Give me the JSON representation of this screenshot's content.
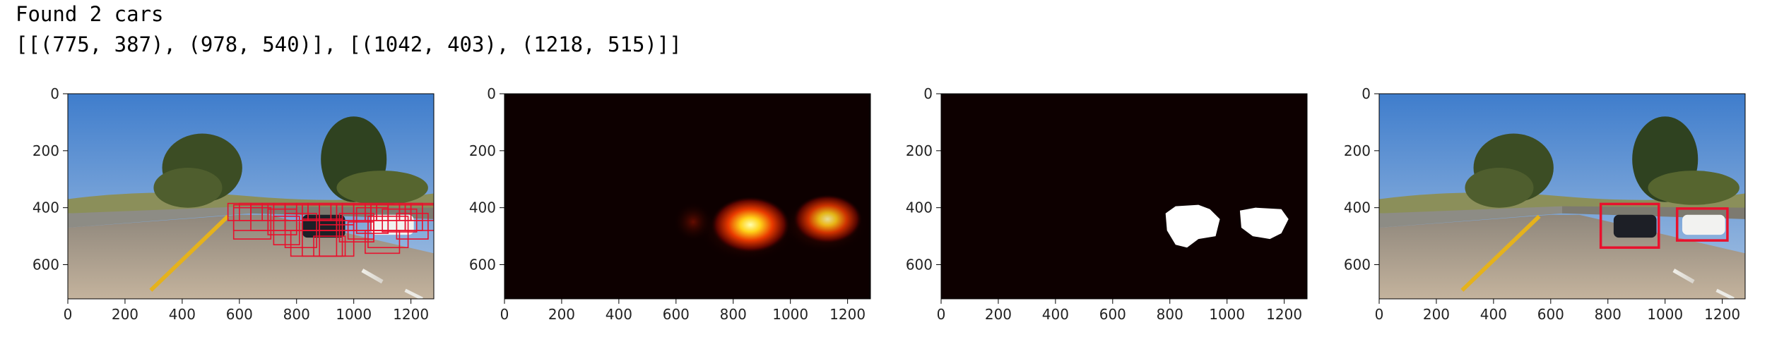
{
  "output": {
    "line1": "Found 2 cars",
    "line2": "[[(775, 387), (978, 540)], [(1042, 403), (1218, 515)]]"
  },
  "chart_data": [
    {
      "type": "image",
      "content": "road scene with many red sliding-window detection boxes",
      "xlim": [
        0,
        1280
      ],
      "ylim": [
        0,
        720
      ],
      "xticks": [
        0,
        200,
        400,
        600,
        800,
        1000,
        1200
      ],
      "yticks": [
        0,
        200,
        400,
        600
      ],
      "grid": false
    },
    {
      "type": "heatmap",
      "content": "heat map of overlapping detections",
      "xlim": [
        0,
        1280
      ],
      "ylim": [
        0,
        720
      ],
      "xticks": [
        0,
        200,
        400,
        600,
        800,
        1000,
        1200
      ],
      "yticks": [
        0,
        200,
        400,
        600
      ],
      "grid": false,
      "hot_regions": [
        {
          "x": 860,
          "y": 460,
          "intensity": 1.0
        },
        {
          "x": 1130,
          "y": 440,
          "intensity": 0.85
        }
      ]
    },
    {
      "type": "heatmap",
      "content": "thresholded binary mask",
      "xlim": [
        0,
        1280
      ],
      "ylim": [
        0,
        720
      ],
      "xticks": [
        0,
        200,
        400,
        600,
        800,
        1000,
        1200
      ],
      "yticks": [
        0,
        200,
        400,
        600
      ],
      "grid": false
    },
    {
      "type": "image",
      "content": "road scene with final car bounding boxes",
      "xlim": [
        0,
        1280
      ],
      "ylim": [
        0,
        720
      ],
      "xticks": [
        0,
        200,
        400,
        600,
        800,
        1000,
        1200
      ],
      "yticks": [
        0,
        200,
        400,
        600
      ],
      "grid": false,
      "boxes": [
        {
          "x1": 775,
          "y1": 387,
          "x2": 978,
          "y2": 540
        },
        {
          "x1": 1042,
          "y1": 403,
          "x2": 1218,
          "y2": 515
        }
      ]
    }
  ],
  "colors": {
    "box": "#e8112d",
    "heat_bg": "#0d0000",
    "mask_fg": "#ffffff",
    "sky": "#4a86d0",
    "road": "#b3a592"
  }
}
